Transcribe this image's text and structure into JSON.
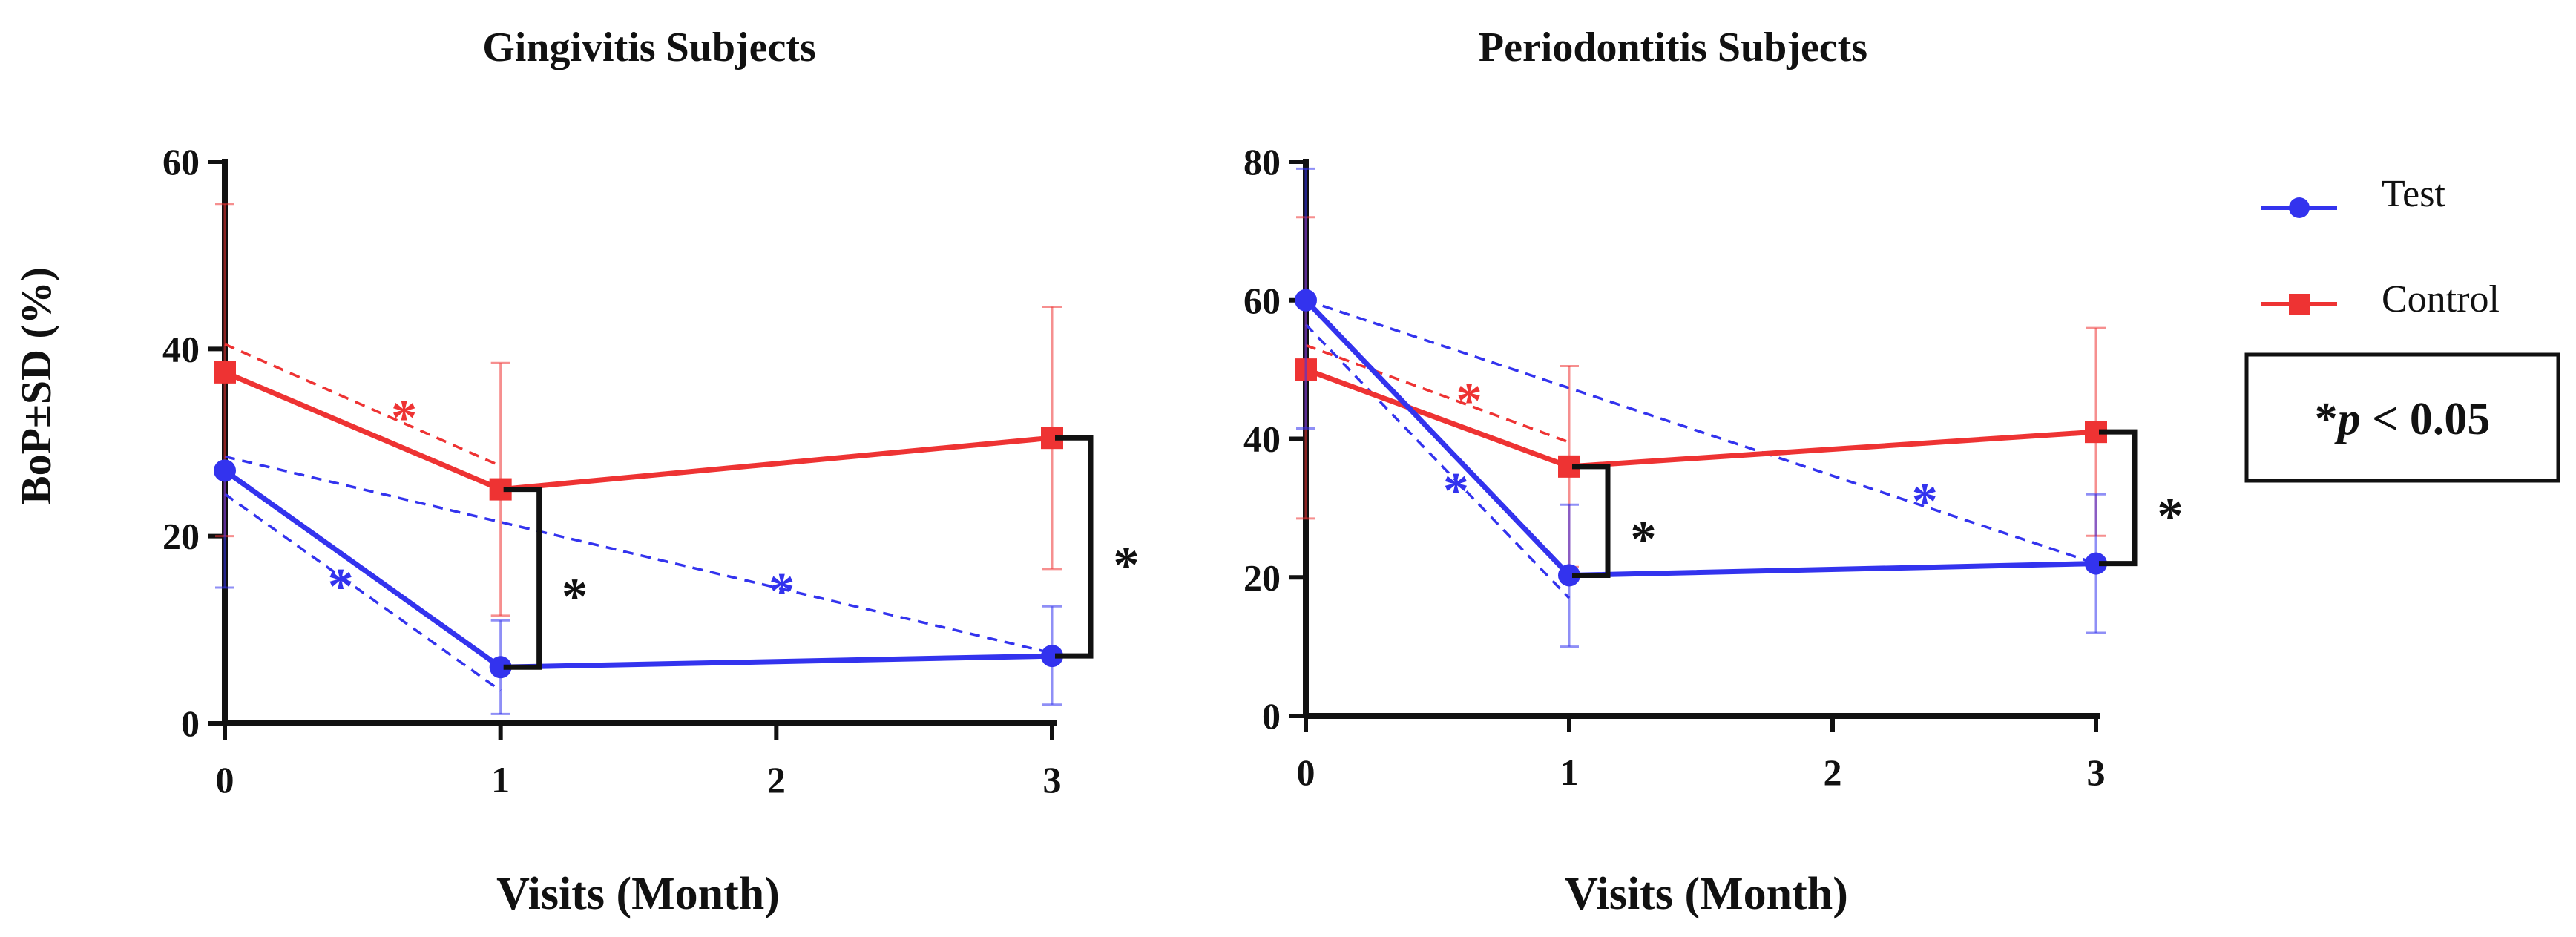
{
  "chart_data": [
    {
      "type": "line",
      "title": "Gingivitis Subjects",
      "xlabel": "Visits (Month)",
      "ylabel": "BoP±SD (%)",
      "xlim": [
        0,
        3
      ],
      "ylim": [
        0,
        60
      ],
      "xticks": [
        "0",
        "1",
        "2",
        "3"
      ],
      "yticks": [
        "0",
        "20",
        "40",
        "60"
      ],
      "x": [
        0,
        1,
        3
      ],
      "series": [
        {
          "name": "Test",
          "color": "#3333ee",
          "marker": "circle",
          "values": [
            27,
            6,
            7.2
          ],
          "sd_low": [
            14.5,
            1,
            2
          ],
          "sd_high": [
            27,
            11,
            12.5
          ]
        },
        {
          "name": "Control",
          "color": "#ee3333",
          "marker": "square",
          "values": [
            37.5,
            25,
            30.5
          ],
          "sd_low": [
            20,
            11.5,
            16.5
          ],
          "sd_high": [
            55.5,
            38.5,
            44.5
          ]
        }
      ],
      "trend_lines": [
        {
          "series": "Control",
          "from": [
            0,
            40.5
          ],
          "to": [
            1,
            27.5
          ],
          "star_at": [
            0.65,
            33
          ]
        },
        {
          "series": "Test",
          "from": [
            0,
            24.5
          ],
          "to": [
            1,
            3.5
          ],
          "star_at": [
            0.42,
            15
          ]
        },
        {
          "series": "Test",
          "from": [
            0,
            28.5
          ],
          "to": [
            3,
            7.5
          ],
          "star_at": [
            2.02,
            14.5
          ]
        }
      ],
      "brackets": [
        {
          "x": 1,
          "y_low": 6,
          "y_high": 25,
          "label": "*"
        },
        {
          "x": 3,
          "y_low": 7.2,
          "y_high": 30.5,
          "label": "*"
        }
      ]
    },
    {
      "type": "line",
      "title": "Periodontitis Subjects",
      "xlabel": "Visits (Month)",
      "xlim": [
        0,
        3
      ],
      "ylim": [
        0,
        80
      ],
      "xticks": [
        "0",
        "1",
        "2",
        "3"
      ],
      "yticks": [
        "0",
        "20",
        "40",
        "60",
        "80"
      ],
      "x": [
        0,
        1,
        3
      ],
      "series": [
        {
          "name": "Test",
          "color": "#3333ee",
          "marker": "circle",
          "values": [
            60,
            20.3,
            22
          ],
          "sd_low": [
            41.5,
            10,
            12
          ],
          "sd_high": [
            79,
            30.5,
            32
          ]
        },
        {
          "name": "Control",
          "color": "#ee3333",
          "marker": "square",
          "values": [
            50,
            36,
            41
          ],
          "sd_low": [
            28.5,
            21.5,
            26
          ],
          "sd_high": [
            72,
            50.5,
            56
          ]
        }
      ],
      "trend_lines": [
        {
          "series": "Control",
          "from": [
            0,
            53.5
          ],
          "to": [
            1,
            39.5
          ],
          "star_at": [
            0.62,
            46
          ]
        },
        {
          "series": "Test",
          "from": [
            0,
            56.5
          ],
          "to": [
            1,
            17
          ],
          "star_at": [
            0.57,
            33
          ]
        },
        {
          "series": "Test",
          "from": [
            0,
            60
          ],
          "to": [
            3,
            22
          ],
          "star_at": [
            2.35,
            31.5
          ]
        }
      ],
      "brackets": [
        {
          "x": 1,
          "y_low": 20.3,
          "y_high": 36,
          "label": "*"
        },
        {
          "x": 3,
          "y_low": 22,
          "y_high": 41,
          "label": "*"
        }
      ]
    }
  ],
  "legend": {
    "items": [
      {
        "label": "Test",
        "color": "#3333ee",
        "marker": "circle"
      },
      {
        "label": "Control",
        "color": "#ee3333",
        "marker": "square"
      }
    ],
    "note": "*p < 0.05",
    "note_star": "*",
    "note_p": "p",
    "note_rest": " < 0.05"
  }
}
